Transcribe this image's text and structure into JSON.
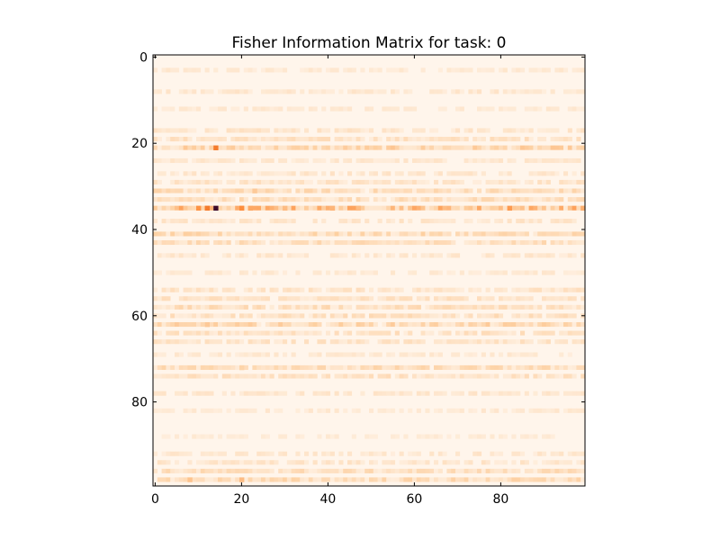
{
  "chart_data": {
    "type": "heatmap",
    "title": "Fisher Information Matrix for task: 0",
    "xlabel": "",
    "ylabel": "",
    "rows": 100,
    "cols": 100,
    "xlim": [
      -0.5,
      99.5
    ],
    "ylim": [
      99.5,
      -0.5
    ],
    "xticks": [
      0,
      20,
      40,
      60,
      80
    ],
    "yticks": [
      0,
      20,
      40,
      60,
      80
    ],
    "colormap": [
      "#fff5eb",
      "#fdd0a2",
      "#fd8d3c",
      "#d94801",
      "#7f2704",
      "#3b0a2a"
    ],
    "grid": false,
    "value_range": [
      0,
      1
    ],
    "row_profile": [
      {
        "row": 3,
        "level": 0.06
      },
      {
        "row": 8,
        "level": 0.07
      },
      {
        "row": 12,
        "level": 0.06
      },
      {
        "row": 17,
        "level": 0.08
      },
      {
        "row": 19,
        "level": 0.1
      },
      {
        "row": 21,
        "level": 0.16
      },
      {
        "row": 24,
        "level": 0.07
      },
      {
        "row": 27,
        "level": 0.08
      },
      {
        "row": 29,
        "level": 0.09
      },
      {
        "row": 31,
        "level": 0.13
      },
      {
        "row": 33,
        "level": 0.12
      },
      {
        "row": 35,
        "level": 0.24
      },
      {
        "row": 38,
        "level": 0.08
      },
      {
        "row": 41,
        "level": 0.14
      },
      {
        "row": 43,
        "level": 0.12
      },
      {
        "row": 46,
        "level": 0.07
      },
      {
        "row": 50,
        "level": 0.06
      },
      {
        "row": 54,
        "level": 0.09
      },
      {
        "row": 56,
        "level": 0.1
      },
      {
        "row": 58,
        "level": 0.12
      },
      {
        "row": 60,
        "level": 0.11
      },
      {
        "row": 62,
        "level": 0.15
      },
      {
        "row": 64,
        "level": 0.1
      },
      {
        "row": 66,
        "level": 0.09
      },
      {
        "row": 69,
        "level": 0.06
      },
      {
        "row": 72,
        "level": 0.13
      },
      {
        "row": 74,
        "level": 0.1
      },
      {
        "row": 78,
        "level": 0.07
      },
      {
        "row": 82,
        "level": 0.06
      },
      {
        "row": 88,
        "level": 0.05
      },
      {
        "row": 92,
        "level": 0.07
      },
      {
        "row": 94,
        "level": 0.08
      },
      {
        "row": 96,
        "level": 0.12
      },
      {
        "row": 98,
        "level": 0.14
      }
    ],
    "hotspots": [
      {
        "row": 35,
        "col": 14,
        "value": 1.0
      },
      {
        "row": 35,
        "col": 12,
        "value": 0.45
      },
      {
        "row": 35,
        "col": 10,
        "value": 0.38
      },
      {
        "row": 35,
        "col": 20,
        "value": 0.4
      },
      {
        "row": 35,
        "col": 22,
        "value": 0.32
      },
      {
        "row": 35,
        "col": 82,
        "value": 0.36
      },
      {
        "row": 35,
        "col": 41,
        "value": 0.28
      },
      {
        "row": 35,
        "col": 47,
        "value": 0.26
      },
      {
        "row": 35,
        "col": 30,
        "value": 0.26
      },
      {
        "row": 35,
        "col": 99,
        "value": 0.3
      },
      {
        "row": 21,
        "col": 14,
        "value": 0.45
      },
      {
        "row": 31,
        "col": 23,
        "value": 0.22
      },
      {
        "row": 62,
        "col": 12,
        "value": 0.22
      },
      {
        "row": 98,
        "col": 8,
        "value": 0.24
      },
      {
        "row": 98,
        "col": 20,
        "value": 0.26
      },
      {
        "row": 72,
        "col": 20,
        "value": 0.18
      }
    ]
  }
}
